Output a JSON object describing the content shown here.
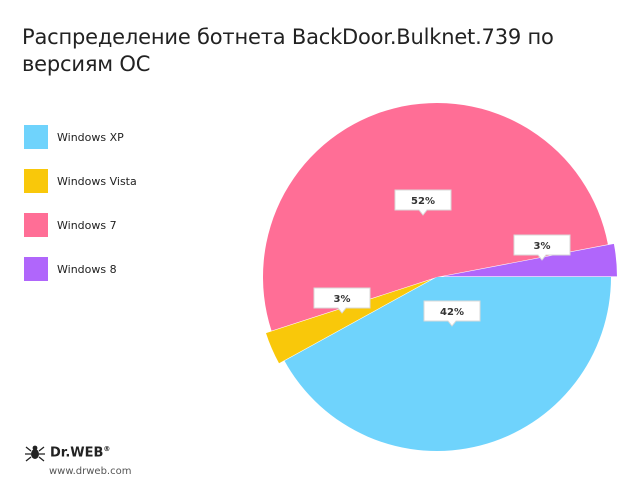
{
  "title": "Распределение ботнета BackDoor.Bulknet.739 по версиям ОС",
  "chart_data": {
    "type": "pie",
    "title": "Распределение ботнета BackDoor.Bulknet.739 по версиям ОС",
    "legend_position": "left",
    "series": [
      {
        "name": "Windows XP",
        "value": 42,
        "label": "42%",
        "color": "#6fd3fc"
      },
      {
        "name": "Windows Vista",
        "value": 3,
        "label": "3%",
        "color": "#f9c80a"
      },
      {
        "name": "Windows 7",
        "value": 52,
        "label": "52%",
        "color": "#ff6e96"
      },
      {
        "name": "Windows 8",
        "value": 3,
        "label": "3%",
        "color": "#b066fb"
      }
    ]
  },
  "branding": {
    "logo_text": "Dr.WEB",
    "registered_mark": "®",
    "website": "www.drweb.com"
  }
}
